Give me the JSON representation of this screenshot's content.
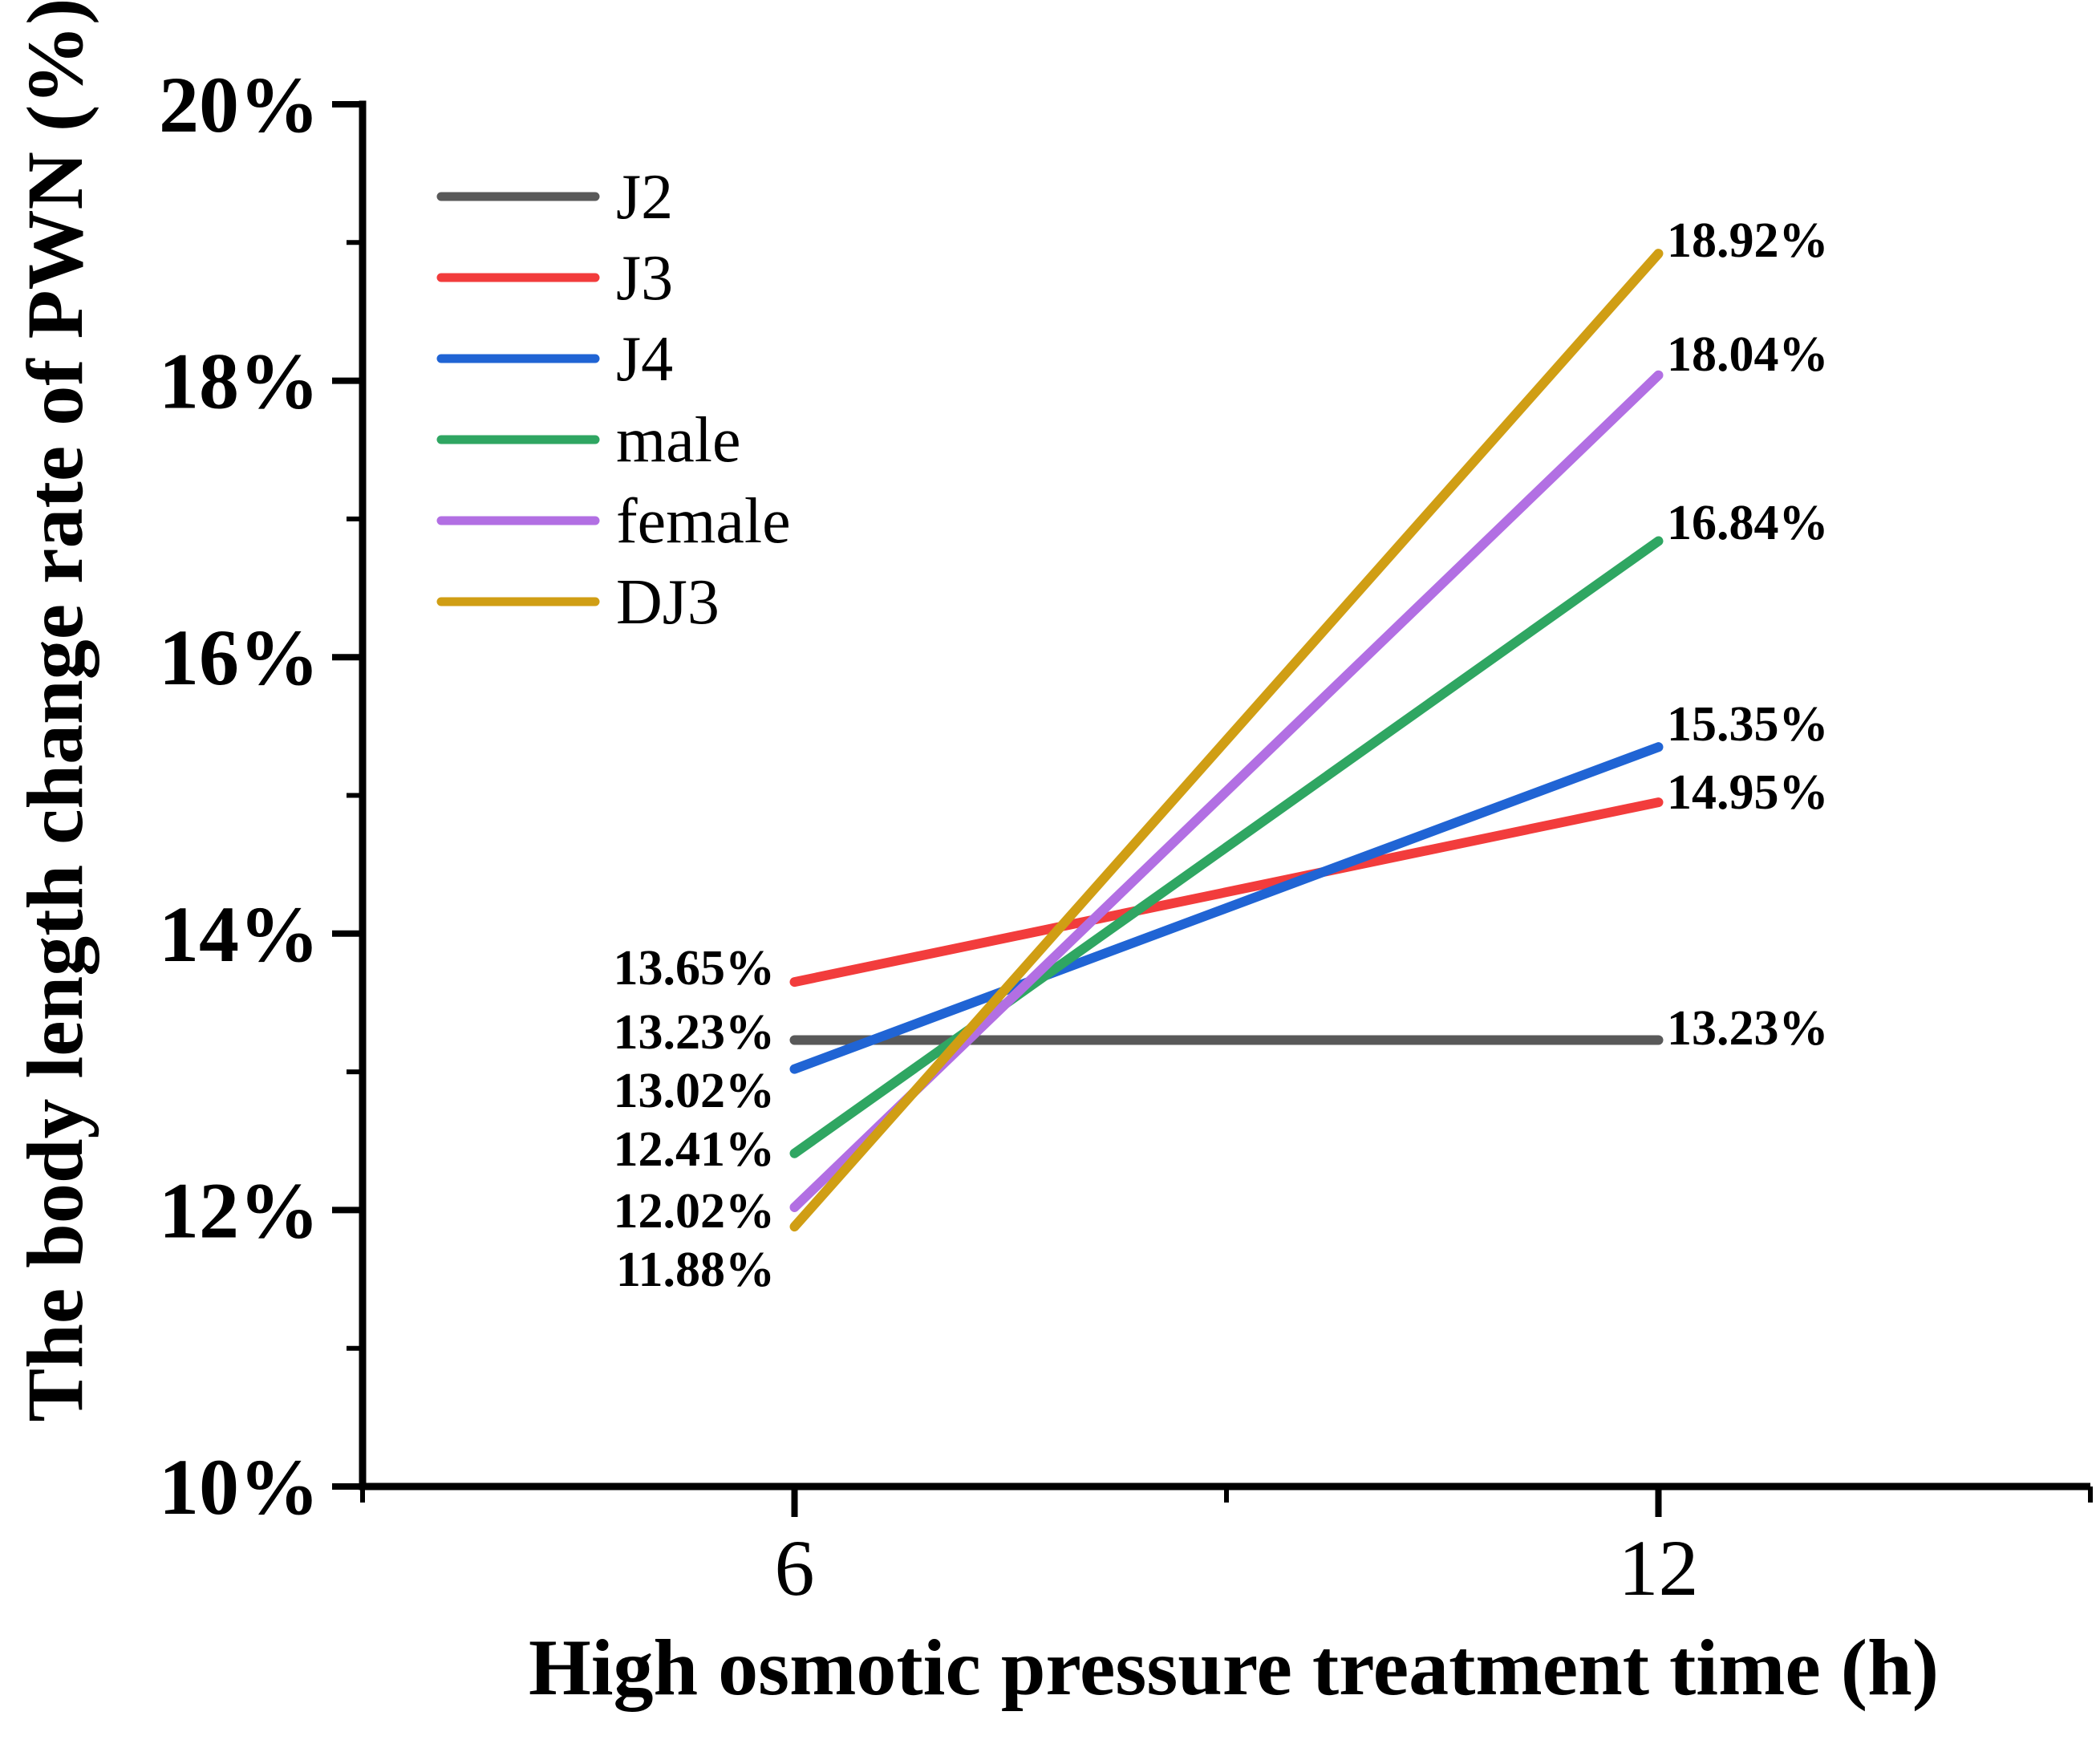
{
  "chart_data": {
    "type": "line",
    "title": "",
    "xlabel": "High osmotic pressure treatment time (h)",
    "ylabel": "The body length change rate of PWN (%)",
    "xlim": [
      3,
      15
    ],
    "ylim": [
      10,
      20
    ],
    "x": [
      6,
      12
    ],
    "x_major_ticks": [
      6,
      12
    ],
    "x_minor_ticks": [
      3,
      9,
      15
    ],
    "x_tick_labels": [
      "6",
      "12"
    ],
    "y_major_ticks": [
      10,
      12,
      14,
      16,
      18,
      20
    ],
    "y_minor_ticks": [
      11,
      13,
      15,
      17,
      19
    ],
    "y_tick_labels": [
      "10%",
      "12%",
      "14%",
      "16%",
      "18%",
      "20%"
    ],
    "grid": false,
    "legend_position": "upper-left-inside",
    "legend": [
      "J2",
      "J3",
      "J4",
      "male",
      "female",
      "DJ3"
    ],
    "series": [
      {
        "name": "J2",
        "color": "#595959",
        "values": [
          13.23,
          13.23
        ],
        "point_labels": [
          "13.23%",
          "13.23%"
        ]
      },
      {
        "name": "J3",
        "color": "#F23C3C",
        "values": [
          13.65,
          14.95
        ],
        "point_labels": [
          "13.65%",
          "14.95%"
        ]
      },
      {
        "name": "J4",
        "color": "#2064D4",
        "values": [
          13.02,
          15.35
        ],
        "point_labels": [
          "13.02%",
          "15.35%"
        ]
      },
      {
        "name": "male",
        "color": "#2FA662",
        "values": [
          12.41,
          16.84
        ],
        "point_labels": [
          "12.41%",
          "16.84%"
        ]
      },
      {
        "name": "female",
        "color": "#B26FE3",
        "values": [
          12.02,
          18.04
        ],
        "point_labels": [
          "12.02%",
          "18.04%"
        ]
      },
      {
        "name": "DJ3",
        "color": "#D09E14",
        "values": [
          11.88,
          18.92
        ],
        "point_labels": [
          "11.88%",
          "18.92%"
        ]
      }
    ]
  }
}
